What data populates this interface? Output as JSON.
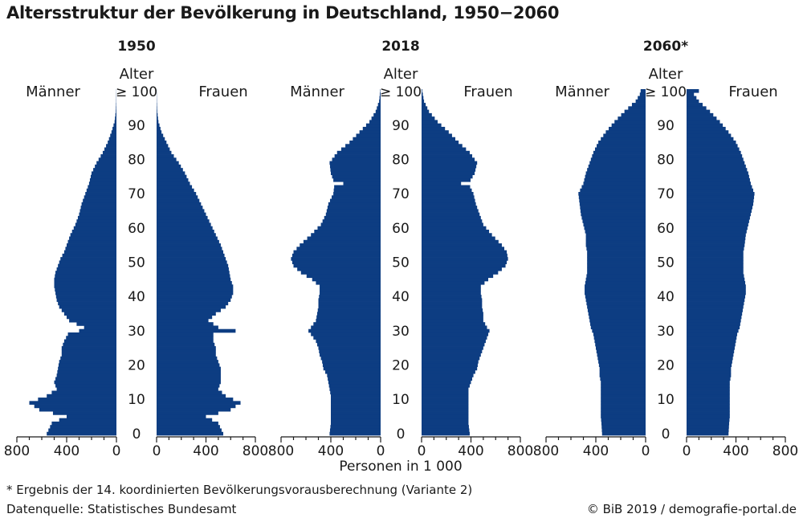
{
  "title": "Altersstruktur der Bevölkerung in Deutschland, 1950−2060",
  "footnote": "* Ergebnis der 14. koordinierten Bevölkerungsvorausberechnung (Variante 2)",
  "source": "Datenquelle: Statistisches Bundesamt",
  "credit": "© BiB 2019 / demografie-portal.de",
  "colors": {
    "bar": "#0d3d82",
    "axis": "#1a1a1a"
  },
  "chart_data": {
    "type": "bar",
    "orientation": "horizontal-population-pyramid",
    "xlabel": "Personen in 1 000",
    "age_axis_label": "Alter",
    "male_label": "Männer",
    "female_label": "Frauen",
    "xlim": [
      0,
      800
    ],
    "x_ticks": [
      "800",
      "400",
      "0",
      "0",
      "400",
      "800"
    ],
    "age_ticks": [
      "0",
      "10",
      "20",
      "30",
      "40",
      "50",
      "60",
      "70",
      "80",
      "90",
      "≥ 100"
    ],
    "age_knots": [
      0,
      3,
      5,
      7,
      9,
      11,
      13,
      15,
      17,
      19,
      21,
      23,
      25,
      27,
      29,
      30,
      31,
      33,
      35,
      37,
      39,
      41,
      43,
      45,
      47,
      49,
      51,
      53,
      55,
      58,
      61,
      64,
      67,
      70,
      73,
      76,
      79,
      82,
      85,
      88,
      91,
      94,
      97,
      100
    ],
    "panels": [
      {
        "year": "1950",
        "male_knots": [
          560,
          520,
          400,
          620,
          700,
          560,
          480,
          500,
          480,
          470,
          460,
          440,
          440,
          420,
          390,
          300,
          260,
          380,
          420,
          460,
          480,
          490,
          500,
          500,
          490,
          470,
          450,
          420,
          400,
          370,
          330,
          300,
          280,
          250,
          220,
          200,
          160,
          110,
          70,
          40,
          15,
          5,
          2,
          1
        ],
        "female_knots": [
          540,
          500,
          400,
          600,
          680,
          560,
          500,
          520,
          520,
          520,
          500,
          480,
          480,
          460,
          460,
          640,
          500,
          420,
          480,
          560,
          600,
          620,
          620,
          600,
          590,
          580,
          560,
          540,
          520,
          480,
          440,
          400,
          360,
          320,
          270,
          230,
          180,
          120,
          80,
          40,
          15,
          5,
          2,
          1
        ]
      },
      {
        "year": "2018",
        "male_knots": [
          410,
          400,
          400,
          400,
          400,
          400,
          410,
          420,
          430,
          460,
          470,
          490,
          500,
          520,
          560,
          580,
          560,
          520,
          510,
          500,
          500,
          490,
          490,
          550,
          640,
          700,
          720,
          700,
          650,
          560,
          480,
          440,
          420,
          380,
          370,
          400,
          410,
          350,
          250,
          170,
          90,
          40,
          12,
          3
        ],
        "female_knots": [
          390,
          380,
          380,
          380,
          380,
          380,
          380,
          400,
          420,
          450,
          460,
          480,
          500,
          520,
          540,
          550,
          530,
          500,
          500,
          490,
          490,
          480,
          480,
          540,
          620,
          680,
          700,
          690,
          650,
          570,
          500,
          470,
          440,
          420,
          380,
          430,
          450,
          390,
          300,
          220,
          130,
          60,
          20,
          5
        ],
        "dips": [
          {
            "age": 73,
            "male": 300,
            "female": 320
          }
        ]
      },
      {
        "year": "2060*",
        "male_knots": [
          350,
          355,
          360,
          360,
          360,
          360,
          360,
          360,
          370,
          370,
          380,
          390,
          400,
          410,
          420,
          430,
          440,
          450,
          460,
          470,
          480,
          490,
          490,
          480,
          470,
          470,
          470,
          470,
          480,
          480,
          500,
          520,
          530,
          540,
          500,
          480,
          450,
          420,
          380,
          320,
          250,
          170,
          80,
          30
        ],
        "female_knots": [
          340,
          345,
          350,
          350,
          350,
          350,
          350,
          350,
          360,
          360,
          370,
          380,
          390,
          400,
          410,
          420,
          430,
          440,
          450,
          460,
          470,
          480,
          480,
          470,
          460,
          460,
          460,
          460,
          470,
          480,
          500,
          520,
          540,
          550,
          520,
          500,
          470,
          440,
          400,
          340,
          270,
          190,
          100,
          40
        ],
        "open_ended": {
          "male": 40,
          "female": 100
        }
      }
    ]
  }
}
